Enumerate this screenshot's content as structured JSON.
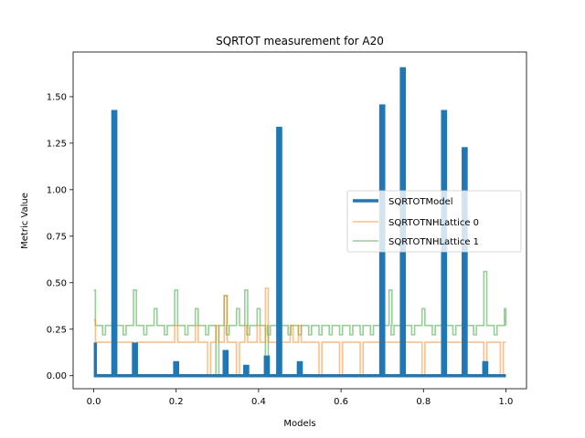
{
  "chart_data": {
    "type": "line",
    "title": "SQRTOT measurement for A20",
    "xlabel": "Models",
    "ylabel": "Metric Value",
    "xlim": [
      -0.05,
      1.05
    ],
    "ylim": [
      -0.07,
      1.74
    ],
    "xticks": [
      0.0,
      0.2,
      0.4,
      0.6,
      0.8,
      1.0
    ],
    "xtick_labels": [
      "0.0",
      "0.2",
      "0.4",
      "0.6",
      "0.8",
      "1.0"
    ],
    "yticks": [
      0.0,
      0.25,
      0.5,
      0.75,
      1.0,
      1.25,
      1.5
    ],
    "ytick_labels": [
      "0.00",
      "0.25",
      "0.50",
      "0.75",
      "1.00",
      "1.25",
      "1.50"
    ],
    "grid": false,
    "legend_position": "right",
    "series": [
      {
        "name": "SQRTOTModel",
        "color": "#1f77b4",
        "line_width": "thick",
        "alpha": 1.0,
        "baseline": 0.0,
        "start_value": 0.17,
        "spikes": [
          {
            "x": 0.05,
            "y": 1.42
          },
          {
            "x": 0.1,
            "y": 0.17
          },
          {
            "x": 0.2,
            "y": 0.07
          },
          {
            "x": 0.32,
            "y": 0.13
          },
          {
            "x": 0.37,
            "y": 0.05
          },
          {
            "x": 0.42,
            "y": 0.1
          },
          {
            "x": 0.45,
            "y": 1.33
          },
          {
            "x": 0.5,
            "y": 0.07
          },
          {
            "x": 0.7,
            "y": 1.45
          },
          {
            "x": 0.75,
            "y": 1.65
          },
          {
            "x": 0.85,
            "y": 1.42
          },
          {
            "x": 0.9,
            "y": 1.22
          },
          {
            "x": 0.95,
            "y": 0.07
          }
        ]
      },
      {
        "name": "SQRTOTNHLattice 0",
        "color": "#ff7f0e",
        "line_width": "normal",
        "alpha": 0.5,
        "baseline": 0.18,
        "start_value": 0.3,
        "spikes": [
          {
            "x": 0.05,
            "y": 0.0
          },
          {
            "x": 0.1,
            "y": 0.0
          },
          {
            "x": 0.15,
            "y": 0.18
          },
          {
            "x": 0.2,
            "y": 0.27
          },
          {
            "x": 0.25,
            "y": 0.27
          },
          {
            "x": 0.28,
            "y": 0.0
          },
          {
            "x": 0.3,
            "y": 0.27
          },
          {
            "x": 0.32,
            "y": 0.43
          },
          {
            "x": 0.35,
            "y": 0.0
          },
          {
            "x": 0.37,
            "y": 0.27
          },
          {
            "x": 0.4,
            "y": 0.27
          },
          {
            "x": 0.42,
            "y": 0.47
          },
          {
            "x": 0.45,
            "y": 0.0
          },
          {
            "x": 0.48,
            "y": 0.27
          },
          {
            "x": 0.5,
            "y": 0.27
          },
          {
            "x": 0.55,
            "y": 0.0
          },
          {
            "x": 0.6,
            "y": 0.0
          },
          {
            "x": 0.65,
            "y": 0.0
          },
          {
            "x": 0.7,
            "y": 0.0
          },
          {
            "x": 0.75,
            "y": 0.0
          },
          {
            "x": 0.8,
            "y": 0.0
          },
          {
            "x": 0.85,
            "y": 0.0
          },
          {
            "x": 0.9,
            "y": 0.0
          },
          {
            "x": 0.95,
            "y": 0.0
          },
          {
            "x": 0.99,
            "y": 0.0
          }
        ]
      },
      {
        "name": "SQRTOTNHLattice 1",
        "color": "#2ca02c",
        "line_width": "normal",
        "alpha": 0.5,
        "baseline": 0.27,
        "start_value": 0.46,
        "pulse_spacing": 0.025,
        "pulse_low": 0.22,
        "spikes": [
          {
            "x": 0.05,
            "y": 0.45
          },
          {
            "x": 0.1,
            "y": 0.46
          },
          {
            "x": 0.15,
            "y": 0.36
          },
          {
            "x": 0.2,
            "y": 0.46
          },
          {
            "x": 0.25,
            "y": 0.36
          },
          {
            "x": 0.3,
            "y": 0.0
          },
          {
            "x": 0.32,
            "y": 0.43
          },
          {
            "x": 0.35,
            "y": 0.36
          },
          {
            "x": 0.37,
            "y": 0.46
          },
          {
            "x": 0.4,
            "y": 0.36
          },
          {
            "x": 0.42,
            "y": 0.0
          },
          {
            "x": 0.45,
            "y": 0.46
          },
          {
            "x": 0.7,
            "y": 0.46
          },
          {
            "x": 0.72,
            "y": 0.46
          },
          {
            "x": 0.75,
            "y": 0.46
          },
          {
            "x": 0.8,
            "y": 0.36
          },
          {
            "x": 0.85,
            "y": 0.46
          },
          {
            "x": 0.9,
            "y": 0.46
          },
          {
            "x": 0.95,
            "y": 0.56
          },
          {
            "x": 1.0,
            "y": 0.36
          }
        ]
      }
    ]
  }
}
